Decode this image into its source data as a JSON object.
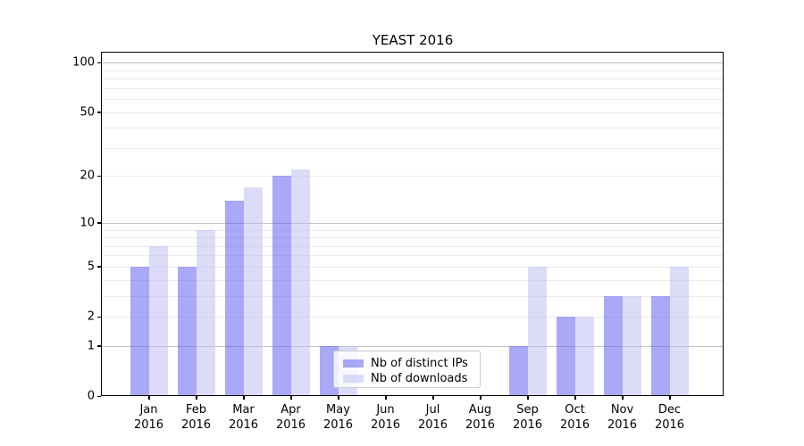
{
  "chart_data": {
    "type": "bar",
    "title": "YEAST 2016",
    "categories": [
      "Jan 2016",
      "Feb 2016",
      "Mar 2016",
      "Apr 2016",
      "May 2016",
      "Jun 2016",
      "Jul 2016",
      "Aug 2016",
      "Sep 2016",
      "Oct 2016",
      "Nov 2016",
      "Dec 2016"
    ],
    "series": [
      {
        "name": "Nb of distinct IPs",
        "color": "#5353ef",
        "alpha": 0.5,
        "values": [
          5,
          5,
          14,
          20,
          1,
          0,
          0,
          0,
          1,
          2,
          3,
          3
        ]
      },
      {
        "name": "Nb of downloads",
        "color": "#b9b9f3",
        "alpha": 0.5,
        "values": [
          7,
          9,
          17,
          22,
          1,
          0,
          0,
          0,
          5,
          2,
          3,
          5
        ]
      }
    ],
    "ylabel": "",
    "xlabel": "",
    "yticks": [
      0,
      1,
      2,
      5,
      10,
      20,
      50,
      100
    ],
    "grid_minor": [
      2,
      3,
      4,
      5,
      6,
      7,
      8,
      9,
      20,
      30,
      40,
      50,
      60,
      70,
      80,
      90
    ],
    "grid_major": [
      1,
      10,
      100
    ],
    "scale": "log10(value+1)",
    "ylim": [
      0,
      115
    ],
    "grid": true,
    "legend_position": "lower center (over May-Jun)"
  }
}
